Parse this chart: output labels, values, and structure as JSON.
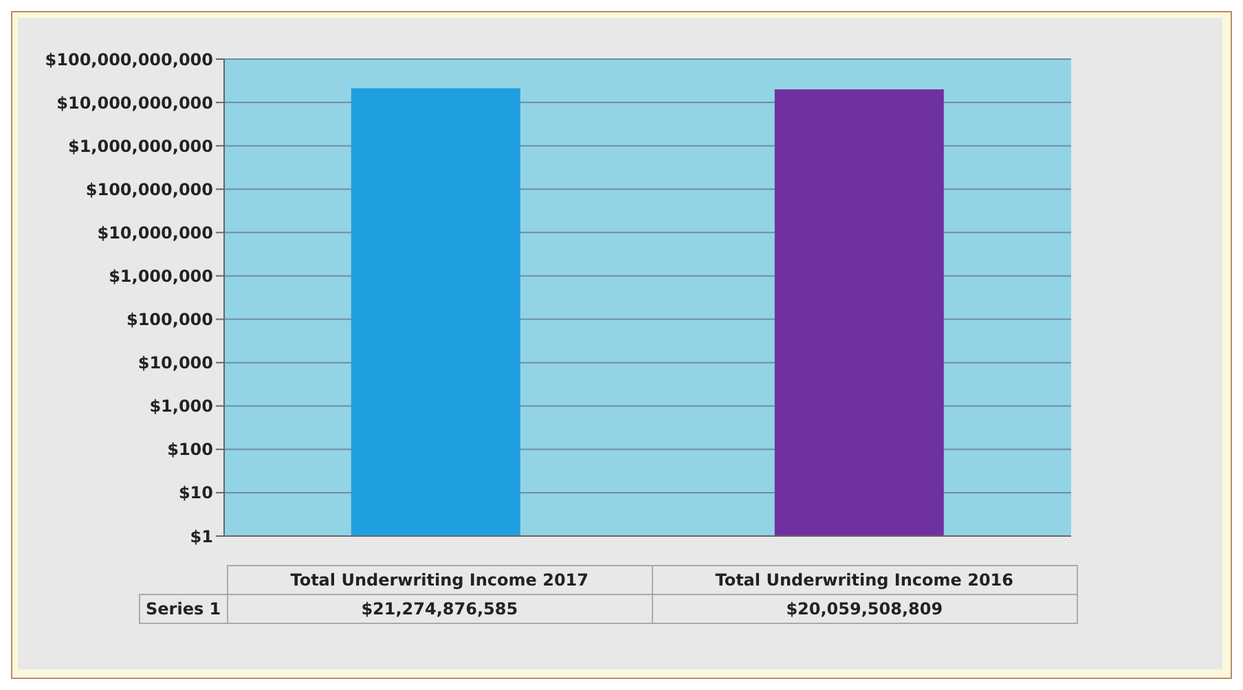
{
  "chart_data": {
    "type": "bar",
    "categories": [
      "Total Underwriting Income 2017",
      "Total Underwriting Income 2016"
    ],
    "series": [
      {
        "name": "Series 1",
        "colors": [
          "#1e9fe0",
          "#7030a0"
        ],
        "values": [
          21274876585,
          20059508809
        ],
        "value_labels": [
          "$21,274,876,585",
          "$20,059,508,809"
        ]
      }
    ],
    "log": "y",
    "ylim": [
      1,
      100000000000
    ],
    "yticks": [
      {
        "value": 1,
        "label": "$1"
      },
      {
        "value": 10,
        "label": "$10"
      },
      {
        "value": 100,
        "label": "$100"
      },
      {
        "value": 1000,
        "label": "$1,000"
      },
      {
        "value": 10000,
        "label": "$10,000"
      },
      {
        "value": 100000,
        "label": "$100,000"
      },
      {
        "value": 1000000,
        "label": "$1,000,000"
      },
      {
        "value": 10000000,
        "label": "$10,000,000"
      },
      {
        "value": 100000000,
        "label": "$100,000,000"
      },
      {
        "value": 1000000000,
        "label": "$1,000,000,000"
      },
      {
        "value": 10000000000,
        "label": "$10,000,000,000"
      },
      {
        "value": 100000000000,
        "label": "$100,000,000,000"
      }
    ],
    "grid": "y"
  }
}
